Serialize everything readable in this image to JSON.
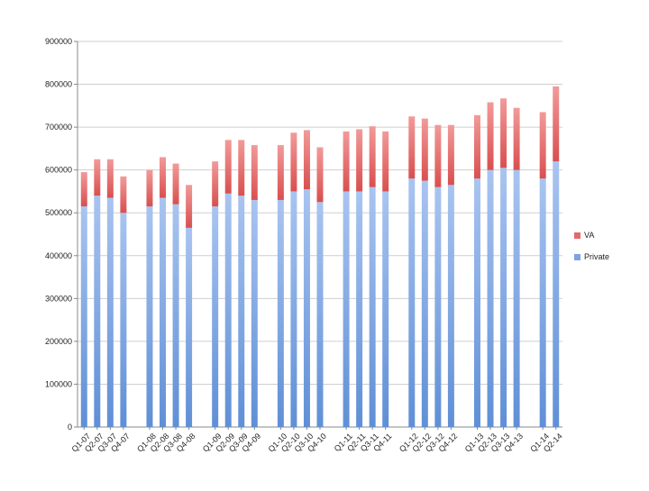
{
  "chart_data": {
    "type": "bar",
    "stacked": true,
    "grid": true,
    "legend_position": "right",
    "title": "",
    "xlabel": "",
    "ylabel": "",
    "ylim": [
      0,
      900000
    ],
    "y_ticks": [
      "0",
      "100000",
      "200000",
      "300000",
      "400000",
      "500000",
      "600000",
      "700000",
      "800000",
      "900000"
    ],
    "groups": [
      [
        "Q1-07",
        "Q2-07",
        "Q3-07",
        "Q4-07"
      ],
      [
        "Q1-08",
        "Q2-08",
        "Q3-08",
        "Q4-08"
      ],
      [
        "Q1-09",
        "Q2-09",
        "Q3-09",
        "Q4-09"
      ],
      [
        "Q1-10",
        "Q2-10",
        "Q3-10",
        "Q4-10"
      ],
      [
        "Q1-11",
        "Q2-11",
        "Q3-11",
        "Q4-11"
      ],
      [
        "Q1-12",
        "Q2-12",
        "Q3-12",
        "Q4-12"
      ],
      [
        "Q1-13",
        "Q2-13",
        "Q3-13",
        "Q4-13"
      ],
      [
        "Q1-14",
        "Q2-14"
      ]
    ],
    "categories": [
      "Q1-07",
      "Q2-07",
      "Q3-07",
      "Q4-07",
      "Q1-08",
      "Q2-08",
      "Q3-08",
      "Q4-08",
      "Q1-09",
      "Q2-09",
      "Q3-09",
      "Q4-09",
      "Q1-10",
      "Q2-10",
      "Q3-10",
      "Q4-10",
      "Q1-11",
      "Q2-11",
      "Q3-11",
      "Q4-11",
      "Q1-12",
      "Q2-12",
      "Q3-12",
      "Q4-12",
      "Q1-13",
      "Q2-13",
      "Q3-13",
      "Q4-13",
      "Q1-14",
      "Q2-14"
    ],
    "series": [
      {
        "name": "Private",
        "color": "#7ba4e0",
        "values": [
          515000,
          540000,
          535000,
          500000,
          515000,
          535000,
          520000,
          465000,
          515000,
          545000,
          540000,
          530000,
          530000,
          550000,
          555000,
          525000,
          550000,
          550000,
          560000,
          550000,
          580000,
          575000,
          560000,
          565000,
          580000,
          600000,
          605000,
          600000,
          580000,
          620000
        ]
      },
      {
        "name": "VA",
        "color": "#e36a6a",
        "values": [
          80000,
          85000,
          90000,
          85000,
          85000,
          95000,
          95000,
          100000,
          105000,
          125000,
          130000,
          128000,
          128000,
          137000,
          138000,
          128000,
          140000,
          145000,
          142000,
          140000,
          145000,
          145000,
          145000,
          140000,
          148000,
          158000,
          162000,
          145000,
          155000,
          175000
        ]
      }
    ]
  }
}
